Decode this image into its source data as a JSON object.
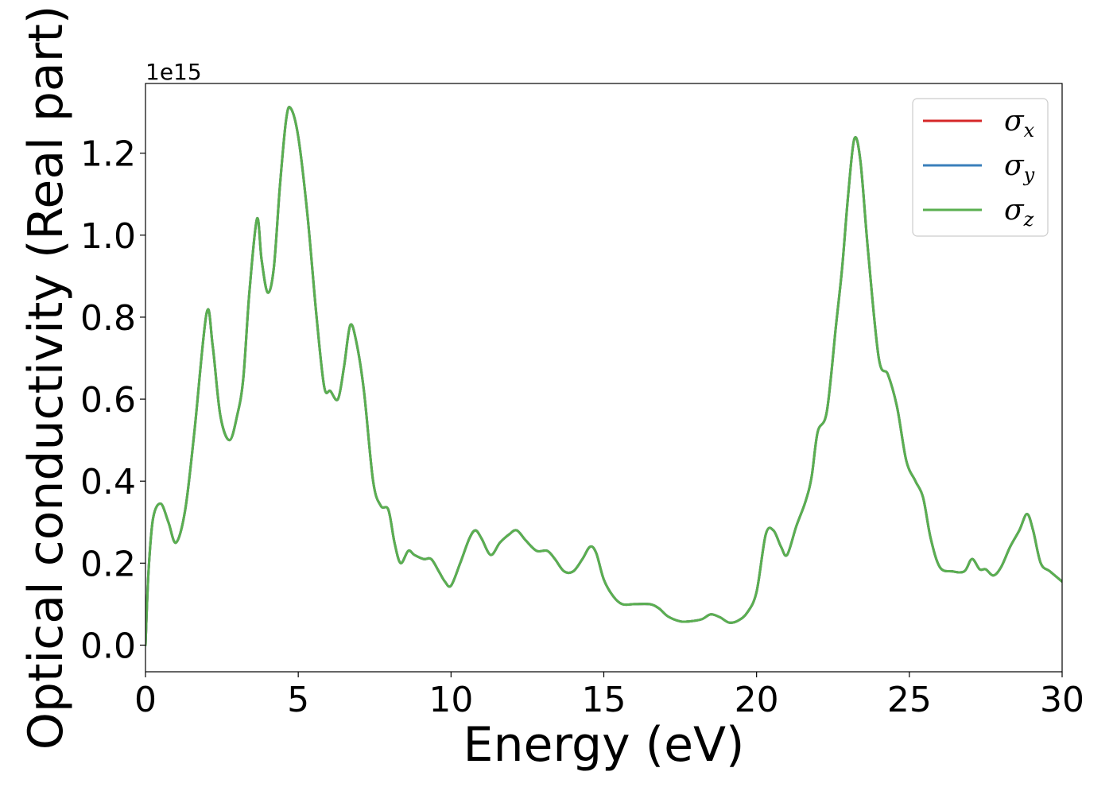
{
  "chart_data": {
    "type": "line",
    "xlabel": "Energy (eV)",
    "ylabel": "Optical conductivity (Real part)",
    "y_offset_label": "1e15",
    "y_multiplier": 1000000000000000.0,
    "xlim": [
      0,
      30
    ],
    "ylim": [
      -0.065,
      1.37
    ],
    "x_ticks": [
      0,
      5,
      10,
      15,
      20,
      25,
      30
    ],
    "x_tick_labels": [
      "0",
      "5",
      "10",
      "15",
      "20",
      "25",
      "30"
    ],
    "y_ticks": [
      0.0,
      0.2,
      0.4,
      0.6,
      0.8,
      1.0,
      1.2
    ],
    "y_tick_labels": [
      "0.0",
      "0.2",
      "0.4",
      "0.6",
      "0.8",
      "1.0",
      "1.2"
    ],
    "grid": false,
    "legend_position": "top-right",
    "x": [
      0,
      0.1,
      0.25,
      0.5,
      0.75,
      1.0,
      1.3,
      1.6,
      2.0,
      2.2,
      2.45,
      2.75,
      3.0,
      3.2,
      3.4,
      3.65,
      3.8,
      4.0,
      4.2,
      4.4,
      4.6,
      4.75,
      5.0,
      5.3,
      5.6,
      5.85,
      6.05,
      6.3,
      6.5,
      6.7,
      6.9,
      7.15,
      7.45,
      7.7,
      7.95,
      8.15,
      8.35,
      8.6,
      8.8,
      9.1,
      9.35,
      9.6,
      9.8,
      10.0,
      10.3,
      10.6,
      10.8,
      11.0,
      11.3,
      11.6,
      11.9,
      12.15,
      12.45,
      12.8,
      13.15,
      13.4,
      13.7,
      14.0,
      14.3,
      14.55,
      14.75,
      15.0,
      15.3,
      15.6,
      16.0,
      16.5,
      16.8,
      17.1,
      17.5,
      17.8,
      18.2,
      18.5,
      18.8,
      19.1,
      19.4,
      19.7,
      20.0,
      20.3,
      20.55,
      20.8,
      21.0,
      21.3,
      21.6,
      21.8,
      22.0,
      22.3,
      22.6,
      22.8,
      23.0,
      23.2,
      23.4,
      23.65,
      24.0,
      24.3,
      24.6,
      24.9,
      25.2,
      25.45,
      25.7,
      26.0,
      26.4,
      26.8,
      27.05,
      27.3,
      27.5,
      27.75,
      28.0,
      28.3,
      28.6,
      28.85,
      29.05,
      29.3,
      29.6,
      30.0
    ],
    "series": [
      {
        "name": "σ_x",
        "label_base": "σ",
        "label_sub": "x",
        "color": "#d62728",
        "values": [
          0.0,
          0.18,
          0.31,
          0.345,
          0.3,
          0.25,
          0.33,
          0.52,
          0.81,
          0.73,
          0.56,
          0.5,
          0.56,
          0.65,
          0.86,
          1.04,
          0.94,
          0.86,
          0.92,
          1.12,
          1.28,
          1.31,
          1.24,
          1.05,
          0.8,
          0.63,
          0.62,
          0.6,
          0.68,
          0.78,
          0.74,
          0.62,
          0.4,
          0.34,
          0.33,
          0.25,
          0.2,
          0.23,
          0.22,
          0.21,
          0.21,
          0.18,
          0.155,
          0.145,
          0.2,
          0.26,
          0.28,
          0.26,
          0.22,
          0.25,
          0.27,
          0.28,
          0.255,
          0.23,
          0.23,
          0.21,
          0.18,
          0.18,
          0.21,
          0.24,
          0.225,
          0.16,
          0.12,
          0.1,
          0.1,
          0.1,
          0.09,
          0.07,
          0.058,
          0.058,
          0.063,
          0.075,
          0.068,
          0.055,
          0.06,
          0.08,
          0.13,
          0.27,
          0.28,
          0.24,
          0.22,
          0.29,
          0.35,
          0.41,
          0.52,
          0.57,
          0.78,
          0.92,
          1.1,
          1.235,
          1.18,
          0.96,
          0.7,
          0.66,
          0.58,
          0.45,
          0.4,
          0.36,
          0.26,
          0.19,
          0.18,
          0.18,
          0.21,
          0.185,
          0.185,
          0.17,
          0.19,
          0.24,
          0.28,
          0.32,
          0.28,
          0.2,
          0.18,
          0.155
        ]
      },
      {
        "name": "σ_y",
        "label_base": "σ",
        "label_sub": "y",
        "color": "#3a7fbb",
        "values": [
          0.0,
          0.18,
          0.31,
          0.345,
          0.3,
          0.25,
          0.33,
          0.52,
          0.81,
          0.73,
          0.56,
          0.5,
          0.56,
          0.65,
          0.86,
          1.04,
          0.94,
          0.86,
          0.92,
          1.12,
          1.28,
          1.31,
          1.24,
          1.05,
          0.8,
          0.63,
          0.62,
          0.6,
          0.68,
          0.78,
          0.74,
          0.62,
          0.4,
          0.34,
          0.33,
          0.25,
          0.2,
          0.23,
          0.22,
          0.21,
          0.21,
          0.18,
          0.155,
          0.145,
          0.2,
          0.26,
          0.28,
          0.26,
          0.22,
          0.25,
          0.27,
          0.28,
          0.255,
          0.23,
          0.23,
          0.21,
          0.18,
          0.18,
          0.21,
          0.24,
          0.225,
          0.16,
          0.12,
          0.1,
          0.1,
          0.1,
          0.09,
          0.07,
          0.058,
          0.058,
          0.063,
          0.075,
          0.068,
          0.055,
          0.06,
          0.08,
          0.13,
          0.27,
          0.28,
          0.24,
          0.22,
          0.29,
          0.35,
          0.41,
          0.52,
          0.57,
          0.78,
          0.92,
          1.1,
          1.235,
          1.18,
          0.96,
          0.7,
          0.66,
          0.58,
          0.45,
          0.4,
          0.36,
          0.26,
          0.19,
          0.18,
          0.18,
          0.21,
          0.185,
          0.185,
          0.17,
          0.19,
          0.24,
          0.28,
          0.32,
          0.28,
          0.2,
          0.18,
          0.155
        ]
      },
      {
        "name": "σ_z",
        "label_base": "σ",
        "label_sub": "z",
        "color": "#5aaf50",
        "values": [
          0.0,
          0.18,
          0.31,
          0.345,
          0.3,
          0.25,
          0.33,
          0.52,
          0.81,
          0.73,
          0.56,
          0.5,
          0.56,
          0.65,
          0.86,
          1.04,
          0.94,
          0.86,
          0.92,
          1.12,
          1.28,
          1.31,
          1.24,
          1.05,
          0.8,
          0.63,
          0.62,
          0.6,
          0.68,
          0.78,
          0.74,
          0.62,
          0.4,
          0.34,
          0.33,
          0.25,
          0.2,
          0.23,
          0.22,
          0.21,
          0.21,
          0.18,
          0.155,
          0.145,
          0.2,
          0.26,
          0.28,
          0.26,
          0.22,
          0.25,
          0.27,
          0.28,
          0.255,
          0.23,
          0.23,
          0.21,
          0.18,
          0.18,
          0.21,
          0.24,
          0.225,
          0.16,
          0.12,
          0.1,
          0.1,
          0.1,
          0.09,
          0.07,
          0.058,
          0.058,
          0.063,
          0.075,
          0.068,
          0.055,
          0.06,
          0.08,
          0.13,
          0.27,
          0.28,
          0.24,
          0.22,
          0.29,
          0.35,
          0.41,
          0.52,
          0.57,
          0.78,
          0.92,
          1.1,
          1.235,
          1.18,
          0.96,
          0.7,
          0.66,
          0.58,
          0.45,
          0.4,
          0.36,
          0.26,
          0.19,
          0.18,
          0.18,
          0.21,
          0.185,
          0.185,
          0.17,
          0.19,
          0.24,
          0.28,
          0.32,
          0.28,
          0.2,
          0.18,
          0.155
        ]
      }
    ]
  }
}
